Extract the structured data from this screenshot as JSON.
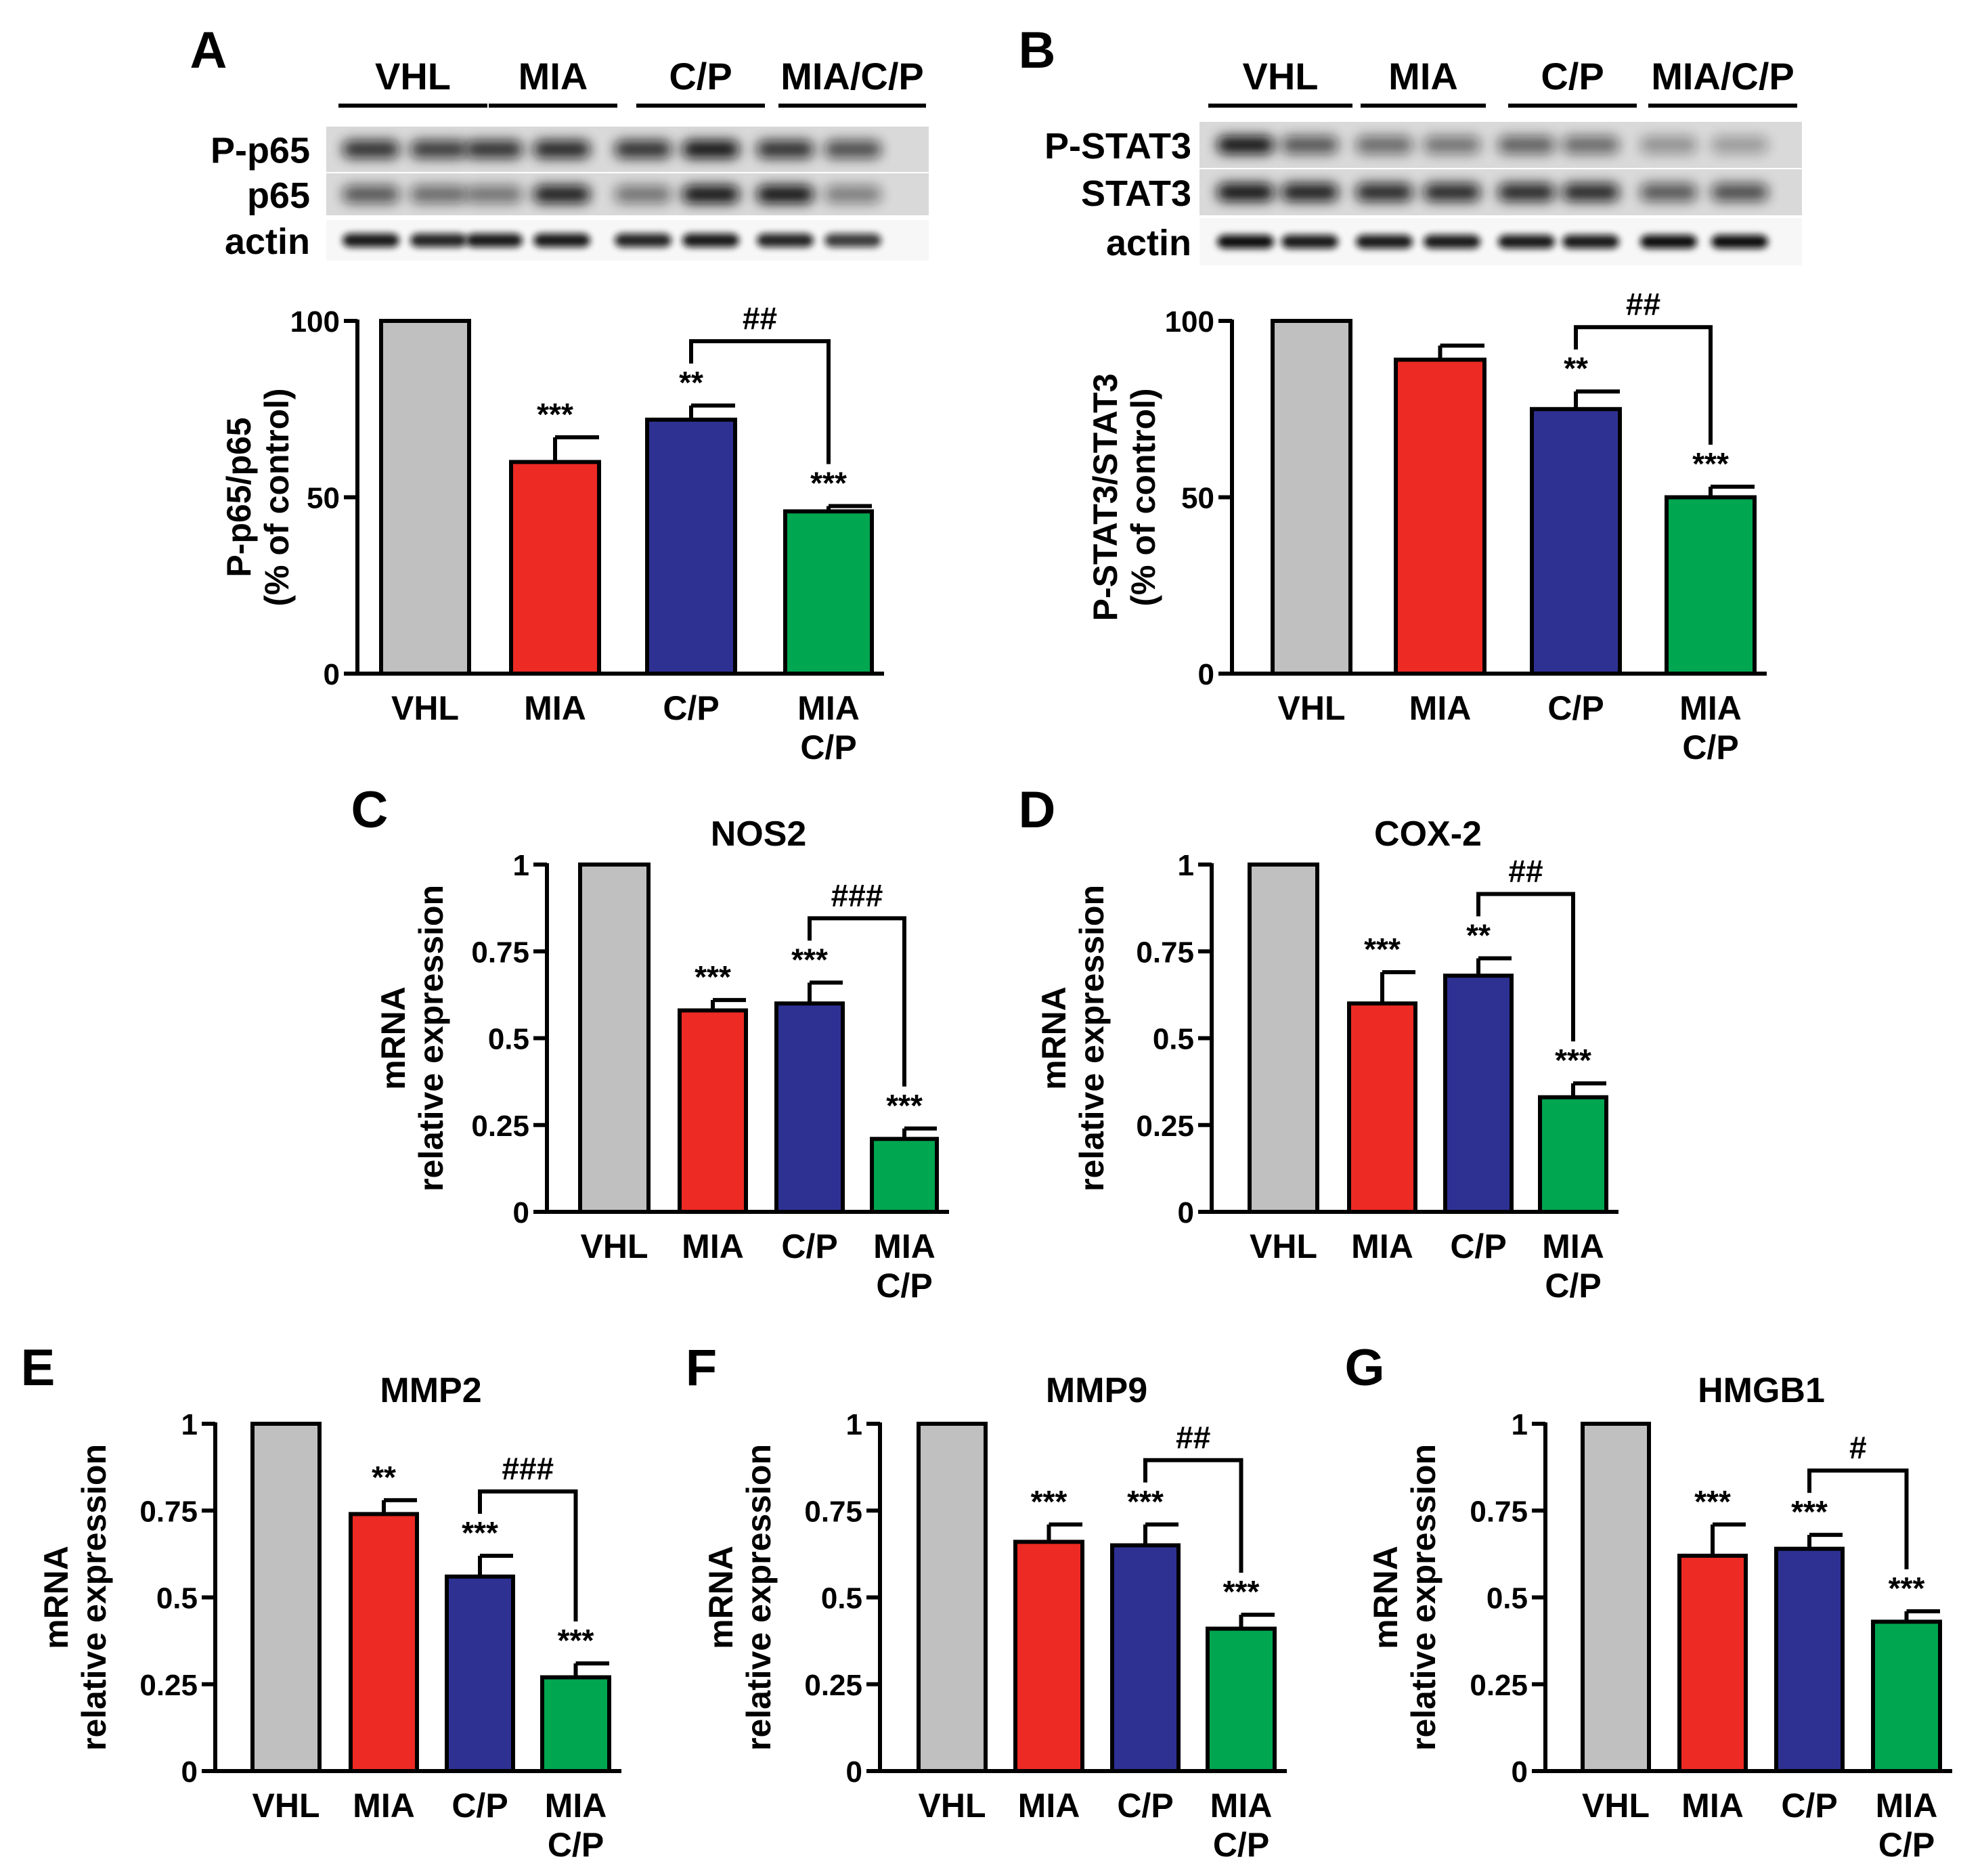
{
  "colors": {
    "VHL": "#c0c0c0",
    "MIA": "#ee2a24",
    "C/P": "#2e3192",
    "MIA/C/P": "#00a650",
    "axis": "#000000"
  },
  "blots": [
    {
      "panel_letter": "A",
      "group_labels": [
        "VHL",
        "MIA",
        "C/P",
        "MIA/C/P"
      ],
      "row_labels": [
        "P-p65",
        "p65",
        "actin"
      ]
    },
    {
      "panel_letter": "B",
      "group_labels": [
        "VHL",
        "MIA",
        "C/P",
        "MIA/C/P"
      ],
      "row_labels": [
        "P-STAT3",
        "STAT3",
        "actin"
      ]
    }
  ],
  "chart_data": [
    {
      "type": "bar",
      "panel_letter": "A",
      "title": "",
      "ylabel": [
        "P-p65/p65",
        "(% of control)"
      ],
      "ylim": [
        0,
        100
      ],
      "yticks": [
        "0",
        "50",
        "100"
      ],
      "categories": [
        [
          "VHL"
        ],
        [
          "MIA"
        ],
        [
          "C/P"
        ],
        [
          "MIA",
          "C/P"
        ]
      ],
      "values": [
        100,
        60,
        72,
        46
      ],
      "errors": [
        0,
        7,
        4,
        1.5
      ],
      "significance": [
        "",
        "***",
        "**",
        "***"
      ],
      "bracket": {
        "from": 2,
        "to": 3,
        "label": "##"
      }
    },
    {
      "type": "bar",
      "panel_letter": "B",
      "title": "",
      "ylabel": [
        "P-STAT3/STAT3",
        "(% of control)"
      ],
      "ylim": [
        0,
        100
      ],
      "yticks": [
        "0",
        "50",
        "100"
      ],
      "categories": [
        [
          "VHL"
        ],
        [
          "MIA"
        ],
        [
          "C/P"
        ],
        [
          "MIA",
          "C/P"
        ]
      ],
      "values": [
        100,
        89,
        75,
        50
      ],
      "errors": [
        0,
        4,
        5,
        3
      ],
      "significance": [
        "",
        "",
        "**",
        "***"
      ],
      "bracket": {
        "from": 2,
        "to": 3,
        "label": "##"
      }
    },
    {
      "type": "bar",
      "panel_letter": "C",
      "title": "NOS2",
      "ylabel": [
        "mRNA",
        "relative expression"
      ],
      "ylim": [
        0,
        1
      ],
      "yticks": [
        "0",
        "0.25",
        "0.5",
        "0.75",
        "1"
      ],
      "categories": [
        [
          "VHL"
        ],
        [
          "MIA"
        ],
        [
          "C/P"
        ],
        [
          "MIA",
          "C/P"
        ]
      ],
      "values": [
        1.0,
        0.58,
        0.6,
        0.21
      ],
      "errors": [
        0,
        0.03,
        0.06,
        0.03
      ],
      "significance": [
        "",
        "***",
        "***",
        "***"
      ],
      "bracket": {
        "from": 2,
        "to": 3,
        "label": "###"
      }
    },
    {
      "type": "bar",
      "panel_letter": "D",
      "title": "COX-2",
      "ylabel": [
        "mRNA",
        "relative expression"
      ],
      "ylim": [
        0,
        1
      ],
      "yticks": [
        "0",
        "0.25",
        "0.5",
        "0.75",
        "1"
      ],
      "categories": [
        [
          "VHL"
        ],
        [
          "MIA"
        ],
        [
          "C/P"
        ],
        [
          "MIA",
          "C/P"
        ]
      ],
      "values": [
        1.0,
        0.6,
        0.68,
        0.33
      ],
      "errors": [
        0,
        0.09,
        0.05,
        0.04
      ],
      "significance": [
        "",
        "***",
        "**",
        "***"
      ],
      "bracket": {
        "from": 2,
        "to": 3,
        "label": "##"
      }
    },
    {
      "type": "bar",
      "panel_letter": "E",
      "title": "MMP2",
      "ylabel": [
        "mRNA",
        "relative expression"
      ],
      "ylim": [
        0,
        1
      ],
      "yticks": [
        "0",
        "0.25",
        "0.5",
        "0.75",
        "1"
      ],
      "categories": [
        [
          "VHL"
        ],
        [
          "MIA"
        ],
        [
          "C/P"
        ],
        [
          "MIA",
          "C/P"
        ]
      ],
      "values": [
        1.0,
        0.74,
        0.56,
        0.27
      ],
      "errors": [
        0,
        0.04,
        0.06,
        0.04
      ],
      "significance": [
        "",
        "**",
        "***",
        "***"
      ],
      "bracket": {
        "from": 2,
        "to": 3,
        "label": "###"
      }
    },
    {
      "type": "bar",
      "panel_letter": "F",
      "title": "MMP9",
      "ylabel": [
        "mRNA",
        "relative expression"
      ],
      "ylim": [
        0,
        1
      ],
      "yticks": [
        "0",
        "0.25",
        "0.5",
        "0.75",
        "1"
      ],
      "categories": [
        [
          "VHL"
        ],
        [
          "MIA"
        ],
        [
          "C/P"
        ],
        [
          "MIA",
          "C/P"
        ]
      ],
      "values": [
        1.0,
        0.66,
        0.65,
        0.41
      ],
      "errors": [
        0,
        0.05,
        0.06,
        0.04
      ],
      "significance": [
        "",
        "***",
        "***",
        "***"
      ],
      "bracket": {
        "from": 2,
        "to": 3,
        "label": "##"
      }
    },
    {
      "type": "bar",
      "panel_letter": "G",
      "title": "HMGB1",
      "ylabel": [
        "mRNA",
        "relative expression"
      ],
      "ylim": [
        0,
        1
      ],
      "yticks": [
        "0",
        "0.25",
        "0.5",
        "0.75",
        "1"
      ],
      "categories": [
        [
          "VHL"
        ],
        [
          "MIA"
        ],
        [
          "C/P"
        ],
        [
          "MIA",
          "C/P"
        ]
      ],
      "values": [
        1.0,
        0.62,
        0.64,
        0.43
      ],
      "errors": [
        0,
        0.09,
        0.04,
        0.03
      ],
      "significance": [
        "",
        "***",
        "***",
        "***"
      ],
      "bracket": {
        "from": 2,
        "to": 3,
        "label": "#"
      }
    }
  ]
}
